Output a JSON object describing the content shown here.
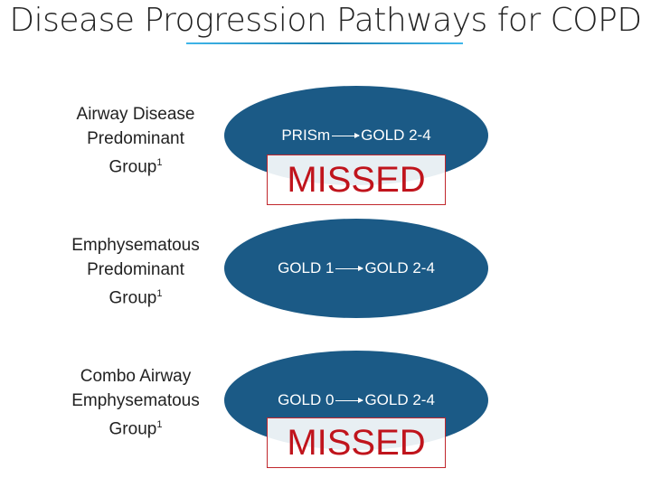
{
  "title": "Disease Progression Pathways for COPD",
  "groups": [
    {
      "label_lines": [
        "Airway Disease",
        "Predominant",
        "Group"
      ],
      "footnote": "1",
      "from": "PRISm",
      "to": "GOLD 2-4",
      "badge": "MISSED"
    },
    {
      "label_lines": [
        "Emphysematous",
        "Predominant",
        "Group"
      ],
      "footnote": "1",
      "from": "GOLD 1",
      "to": "GOLD 2-4",
      "badge": ""
    },
    {
      "label_lines": [
        "Combo Airway",
        "Emphysematous",
        "Group"
      ],
      "footnote": "1",
      "from": "GOLD 0",
      "to": "GOLD 2-4",
      "badge": "MISSED"
    }
  ],
  "colors": {
    "ellipse": "#1b5a86",
    "missed": "#c0141c",
    "underline": "#3fb6ea"
  }
}
